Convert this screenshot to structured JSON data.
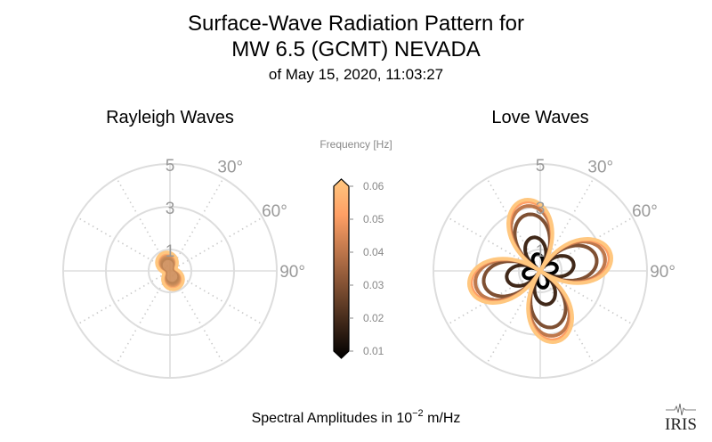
{
  "title_line1": "Surface-Wave Radiation Pattern for",
  "title_line2": "MW 6.5 (GCMT) NEVADA",
  "subtitle": "of May 15, 2020, 11:03:27",
  "bottom_label_prefix": "Spectral Amplitudes in 10",
  "bottom_label_exp": "−2",
  "bottom_label_suffix": " m/Hz",
  "logo_text": "IRIS",
  "chart_data": [
    {
      "type": "polar-line",
      "title": "Rayleigh Waves",
      "radial_ticks": [
        1,
        3,
        5
      ],
      "radial_tick_labels": [
        "1",
        "3",
        "5"
      ],
      "rlim": [
        0,
        5
      ],
      "angle_tick_labels": [
        "30°",
        "60°",
        "90°"
      ],
      "grid": true,
      "pattern": "two-lobed (figure-eight)",
      "lobe_azimuth_deg": -20,
      "series": [
        {
          "frequency": 0.01,
          "peak_amplitude": 0.6
        },
        {
          "frequency": 0.02,
          "peak_amplitude": 0.7
        },
        {
          "frequency": 0.03,
          "peak_amplitude": 0.75
        },
        {
          "frequency": 0.04,
          "peak_amplitude": 0.8
        },
        {
          "frequency": 0.05,
          "peak_amplitude": 0.85
        },
        {
          "frequency": 0.06,
          "peak_amplitude": 0.9
        }
      ]
    },
    {
      "type": "polar-line",
      "title": "Love Waves",
      "radial_ticks": [
        1,
        3,
        5
      ],
      "radial_tick_labels": [
        "1",
        "3",
        "5"
      ],
      "rlim": [
        0,
        5
      ],
      "angle_tick_labels": [
        "30°",
        "60°",
        "90°"
      ],
      "grid": true,
      "pattern": "four-lobed",
      "lobe_azimuth_deg": -13,
      "series": [
        {
          "frequency": 0.01,
          "peak_amplitude": 0.8
        },
        {
          "frequency": 0.02,
          "peak_amplitude": 1.6
        },
        {
          "frequency": 0.03,
          "peak_amplitude": 2.7
        },
        {
          "frequency": 0.04,
          "peak_amplitude": 3.1
        },
        {
          "frequency": 0.05,
          "peak_amplitude": 3.3
        },
        {
          "frequency": 0.06,
          "peak_amplitude": 3.4
        }
      ]
    }
  ],
  "colorbar": {
    "label": "Frequency [Hz]",
    "colormap": "copper",
    "range": [
      0.01,
      0.06
    ],
    "ticks": [
      "0.06",
      "0.05",
      "0.04",
      "0.03",
      "0.02",
      "0.01"
    ],
    "extend": "both"
  }
}
